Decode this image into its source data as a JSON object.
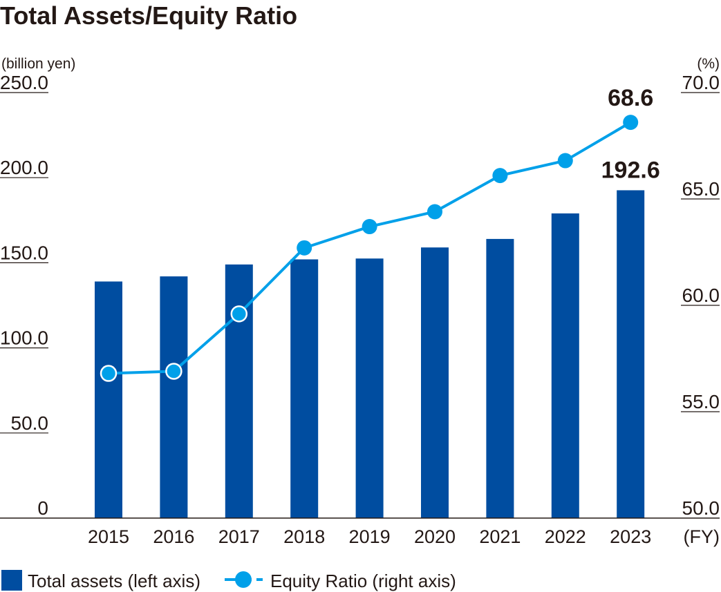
{
  "chart_data": {
    "type": "bar",
    "title": "Total Assets/Equity Ratio",
    "left_unit": "(billion yen)",
    "right_unit": "(%)",
    "x_unit": "(FY)",
    "categories": [
      "2015",
      "2016",
      "2017",
      "2018",
      "2019",
      "2020",
      "2021",
      "2022",
      "2023"
    ],
    "left_axis": {
      "ylim": [
        0,
        250
      ],
      "ticks": [
        {
          "value": 0,
          "label": "0"
        },
        {
          "value": 50,
          "label": "50.0"
        },
        {
          "value": 100,
          "label": "100.0"
        },
        {
          "value": 150,
          "label": "150.0"
        },
        {
          "value": 200,
          "label": "200.0"
        },
        {
          "value": 250,
          "label": "250.0"
        }
      ]
    },
    "right_axis": {
      "ylim": [
        50,
        70
      ],
      "ticks": [
        {
          "value": 50,
          "label": "50.0"
        },
        {
          "value": 55,
          "label": "55.0"
        },
        {
          "value": 60,
          "label": "60.0"
        },
        {
          "value": 65,
          "label": "65.0"
        },
        {
          "value": 70,
          "label": "70.0"
        }
      ]
    },
    "series": [
      {
        "name": "Total assets (left axis)",
        "type": "bar",
        "axis": "left",
        "color": "#004da0",
        "values": [
          139.0,
          142.0,
          149.0,
          152.0,
          152.5,
          159.0,
          164.0,
          179.0,
          192.6
        ]
      },
      {
        "name": "Equity Ratio (right axis)",
        "type": "line",
        "axis": "right",
        "color": "#00a0e9",
        "values": [
          56.8,
          56.9,
          59.6,
          62.7,
          63.7,
          64.4,
          66.1,
          66.8,
          68.6
        ]
      }
    ],
    "data_labels": [
      {
        "series": 0,
        "index": 8,
        "text": "192.6"
      },
      {
        "series": 1,
        "index": 8,
        "text": "68.6"
      }
    ],
    "hollow_markers_series1": [
      0,
      1,
      2
    ],
    "legend_position": "bottom-left",
    "grid": false
  }
}
